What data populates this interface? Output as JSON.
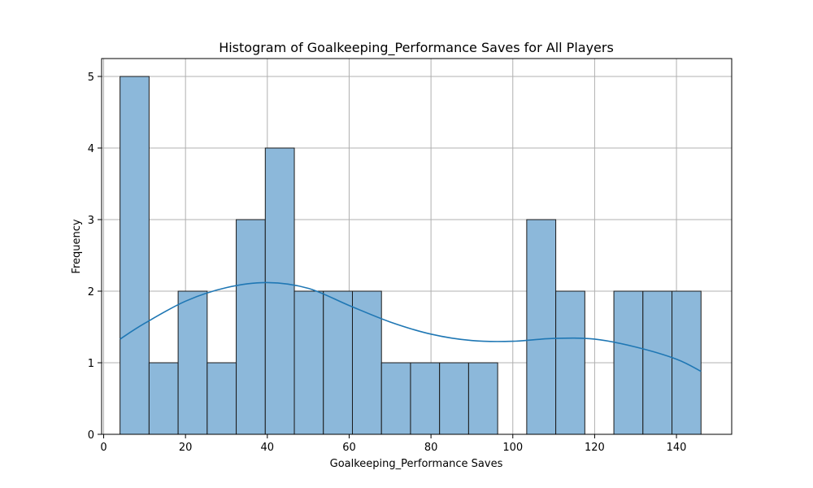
{
  "chart_data": {
    "type": "bar",
    "title": "Histogram of Goalkeeping_Performance Saves for All Players",
    "xlabel": "Goalkeeping_Performance Saves",
    "ylabel": "Frequency",
    "xlim": [
      -0.5,
      153.5
    ],
    "ylim": [
      0,
      5.25
    ],
    "xticks": [
      0,
      20,
      40,
      60,
      80,
      100,
      120,
      140
    ],
    "yticks": [
      0,
      1,
      2,
      3,
      4,
      5
    ],
    "grid": true,
    "bin_edges": [
      4,
      11.1,
      18.2,
      25.3,
      32.4,
      39.5,
      46.6,
      53.7,
      60.8,
      67.9,
      75.0,
      82.1,
      89.2,
      96.3,
      103.4,
      110.5,
      117.6,
      124.7,
      131.8,
      138.9,
      146.0
    ],
    "counts": [
      5,
      1,
      2,
      1,
      3,
      4,
      2,
      2,
      2,
      1,
      1,
      1,
      1,
      0,
      3,
      2,
      0,
      2,
      2,
      2
    ],
    "kde": {
      "x": [
        4,
        10,
        20,
        30,
        40,
        50,
        60,
        70,
        80,
        90,
        100,
        110,
        120,
        130,
        140,
        146
      ],
      "y": [
        1.33,
        1.55,
        1.86,
        2.05,
        2.12,
        2.04,
        1.8,
        1.57,
        1.4,
        1.31,
        1.3,
        1.34,
        1.33,
        1.22,
        1.05,
        0.88
      ]
    },
    "colors": {
      "bar_fill": "#8cb8da",
      "bar_edge": "#1a1a1a",
      "kde_line": "#1f77b4",
      "grid": "#b0b0b0"
    }
  }
}
